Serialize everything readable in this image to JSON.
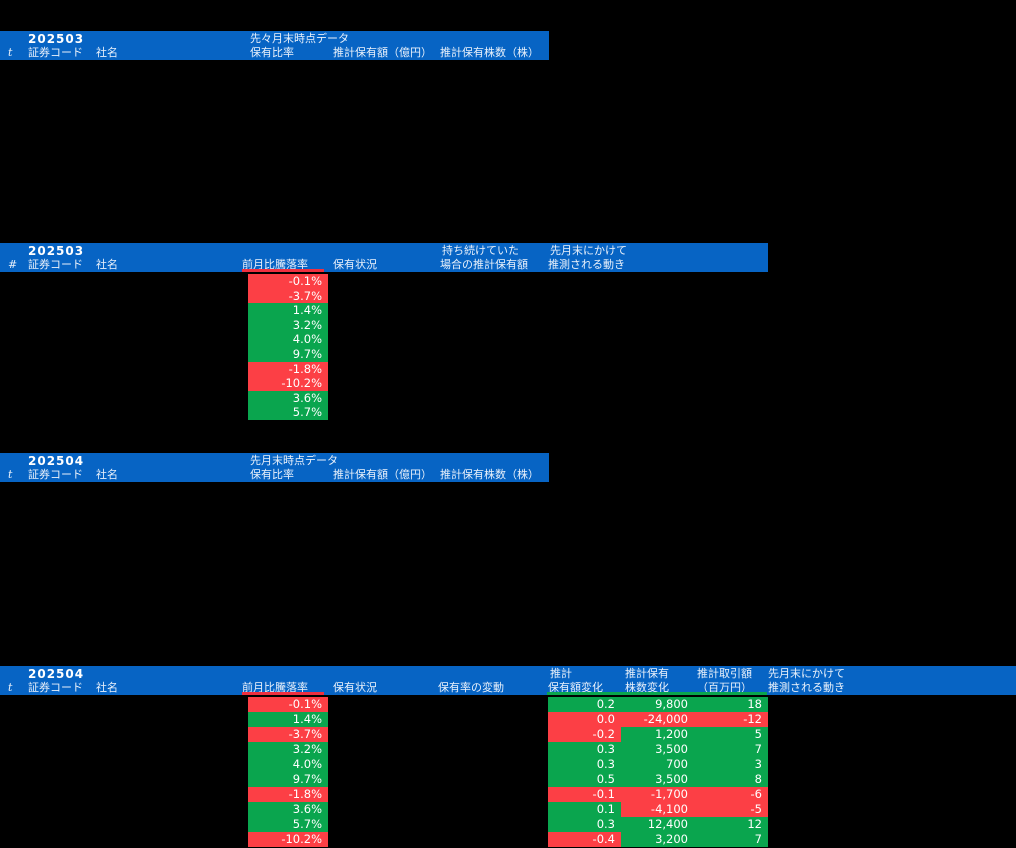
{
  "colors": {
    "background": "#000000",
    "header_bg": "#0764c4",
    "positive_bg": "#0aa54e",
    "negative_bg": "#fc3f45",
    "header_text": "#e9f1fb",
    "cell_text": "#ffffff"
  },
  "tables": {
    "t1": {
      "period": "202503",
      "section": "先々月末時点データ",
      "cols": {
        "idx": "t",
        "code": "証券コード",
        "name": "社名",
        "ratio": "保有比率",
        "amount": "推計保有額（億円）",
        "shares": "推計保有株数（株）"
      }
    },
    "t2": {
      "period": "202503",
      "cols": {
        "idx": "#",
        "code": "証券コード",
        "name": "社名",
        "change": "前月比騰落率",
        "status": "保有状況",
        "held1": "持ち続けていた",
        "held2": "場合の推計保有額",
        "move1": "先月末にかけて",
        "move2": "推測される動き"
      },
      "rows": [
        {
          "value": "-0.1%",
          "sign": "neg"
        },
        {
          "value": "-3.7%",
          "sign": "neg"
        },
        {
          "value": "1.4%",
          "sign": "pos"
        },
        {
          "value": "3.2%",
          "sign": "pos"
        },
        {
          "value": "4.0%",
          "sign": "pos"
        },
        {
          "value": "9.7%",
          "sign": "pos"
        },
        {
          "value": "-1.8%",
          "sign": "neg"
        },
        {
          "value": "-10.2%",
          "sign": "neg"
        },
        {
          "value": "3.6%",
          "sign": "pos"
        },
        {
          "value": "5.7%",
          "sign": "pos"
        }
      ]
    },
    "t3": {
      "period": "202504",
      "section": "先月末時点データ",
      "cols": {
        "idx": "t",
        "code": "証券コード",
        "name": "社名",
        "ratio": "保有比率",
        "amount": "推計保有額（億円）",
        "shares": "推計保有株数（株）"
      }
    },
    "t4": {
      "period": "202504",
      "cols": {
        "idx": "t",
        "code": "証券コード",
        "name": "社名",
        "change": "前月比騰落率",
        "status": "保有状況",
        "ratio_change": "保有率の変動",
        "amt1": "推計",
        "amt2": "保有額変化",
        "sh1": "推計保有",
        "sh2": "株数変化",
        "trd1": "推計取引額",
        "trd2": "（百万円）",
        "move1": "先月末にかけて",
        "move2": "推測される動き"
      },
      "rows": [
        {
          "change": "-0.1%",
          "change_sign": "neg",
          "amount": "0.2",
          "amount_sign": "pos",
          "shares": "9,800",
          "shares_sign": "pos",
          "trade": "18",
          "trade_sign": "pos"
        },
        {
          "change": "1.4%",
          "change_sign": "pos",
          "amount": "0.0",
          "amount_sign": "neg",
          "shares": "-24,000",
          "shares_sign": "neg",
          "trade": "-12",
          "trade_sign": "neg"
        },
        {
          "change": "-3.7%",
          "change_sign": "neg",
          "amount": "-0.2",
          "amount_sign": "neg",
          "shares": "1,200",
          "shares_sign": "pos",
          "trade": "5",
          "trade_sign": "pos"
        },
        {
          "change": "3.2%",
          "change_sign": "pos",
          "amount": "0.3",
          "amount_sign": "pos",
          "shares": "3,500",
          "shares_sign": "pos",
          "trade": "7",
          "trade_sign": "pos"
        },
        {
          "change": "4.0%",
          "change_sign": "pos",
          "amount": "0.3",
          "amount_sign": "pos",
          "shares": "700",
          "shares_sign": "pos",
          "trade": "3",
          "trade_sign": "pos"
        },
        {
          "change": "9.7%",
          "change_sign": "pos",
          "amount": "0.5",
          "amount_sign": "pos",
          "shares": "3,500",
          "shares_sign": "pos",
          "trade": "8",
          "trade_sign": "pos"
        },
        {
          "change": "-1.8%",
          "change_sign": "neg",
          "amount": "-0.1",
          "amount_sign": "neg",
          "shares": "-1,700",
          "shares_sign": "neg",
          "trade": "-6",
          "trade_sign": "neg"
        },
        {
          "change": "3.6%",
          "change_sign": "pos",
          "amount": "0.1",
          "amount_sign": "pos",
          "shares": "-4,100",
          "shares_sign": "neg",
          "trade": "-5",
          "trade_sign": "neg"
        },
        {
          "change": "5.7%",
          "change_sign": "pos",
          "amount": "0.3",
          "amount_sign": "pos",
          "shares": "12,400",
          "shares_sign": "pos",
          "trade": "12",
          "trade_sign": "pos"
        },
        {
          "change": "-10.2%",
          "change_sign": "neg",
          "amount": "-0.4",
          "amount_sign": "neg",
          "shares": "3,200",
          "shares_sign": "pos",
          "trade": "7",
          "trade_sign": "pos"
        }
      ]
    }
  },
  "chart_data": [
    {
      "type": "table",
      "title": "202503 先々月末時点データ",
      "columns": [
        "t",
        "証券コード",
        "社名",
        "保有比率",
        "推計保有額（億円）",
        "推計保有株数（株）"
      ],
      "rows": []
    },
    {
      "type": "table",
      "title": "202503",
      "columns": [
        "#",
        "証券コード",
        "社名",
        "前月比騰落率",
        "保有状況",
        "持ち続けていた場合の推計保有額",
        "先月末にかけて推測される動き"
      ],
      "visible_column": "前月比騰落率",
      "rows": [
        "-0.1%",
        "-3.7%",
        "1.4%",
        "3.2%",
        "4.0%",
        "9.7%",
        "-1.8%",
        "-10.2%",
        "3.6%",
        "5.7%"
      ]
    },
    {
      "type": "table",
      "title": "202504 先月末時点データ",
      "columns": [
        "t",
        "証券コード",
        "社名",
        "保有比率",
        "推計保有額（億円）",
        "推計保有株数（株）"
      ],
      "rows": []
    },
    {
      "type": "table",
      "title": "202504",
      "columns": [
        "t",
        "証券コード",
        "社名",
        "前月比騰落率",
        "保有状況",
        "保有率の変動",
        "推計保有額変化",
        "推計保有株数変化",
        "推計取引額（百万円）",
        "先月末にかけて推測される動き"
      ],
      "visible_columns": [
        "前月比騰落率",
        "推計保有額変化",
        "推計保有株数変化",
        "推計取引額（百万円）"
      ],
      "rows": [
        [
          "-0.1%",
          "0.2",
          "9,800",
          "18"
        ],
        [
          "1.4%",
          "0.0",
          "-24,000",
          "-12"
        ],
        [
          "-3.7%",
          "-0.2",
          "1,200",
          "5"
        ],
        [
          "3.2%",
          "0.3",
          "3,500",
          "7"
        ],
        [
          "4.0%",
          "0.3",
          "700",
          "3"
        ],
        [
          "9.7%",
          "0.5",
          "3,500",
          "8"
        ],
        [
          "-1.8%",
          "-0.1",
          "-1,700",
          "-6"
        ],
        [
          "3.6%",
          "0.1",
          "-4,100",
          "-5"
        ],
        [
          "5.7%",
          "0.3",
          "12,400",
          "12"
        ],
        [
          "-10.2%",
          "-0.4",
          "3,200",
          "7"
        ]
      ]
    }
  ]
}
